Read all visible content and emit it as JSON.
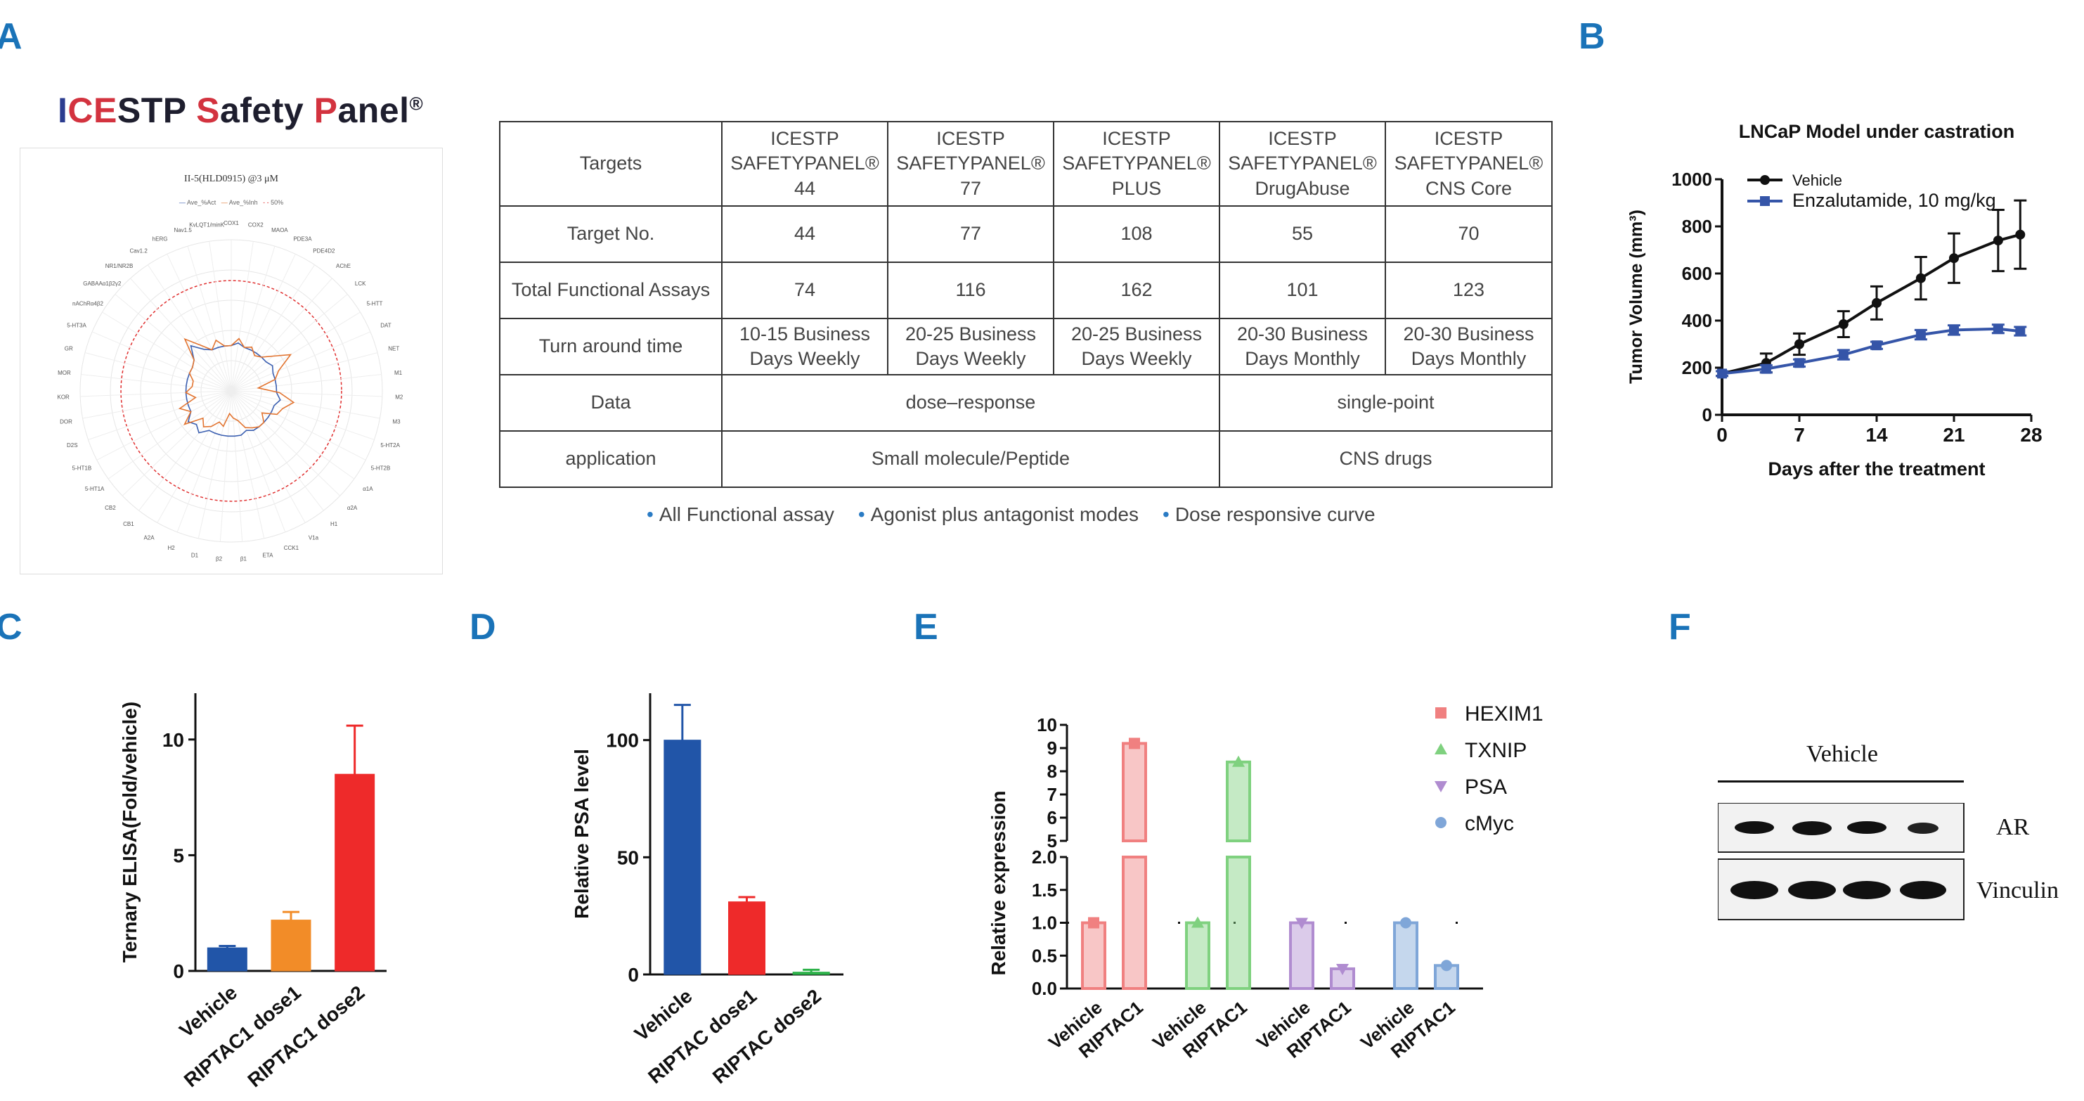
{
  "panel_labels": {
    "a": "A",
    "b": "B",
    "c": "C",
    "d": "D",
    "e": "E",
    "f": "F"
  },
  "panelA": {
    "title_parts": [
      "I",
      "CE",
      "STP ",
      "S",
      "afety ",
      "P",
      "anel",
      "®"
    ],
    "radar": {
      "title": "II-5(HLD0915) @3 μM",
      "legend": [
        "Ave_%Act",
        "Ave_%Inh",
        "50%"
      ],
      "axes": [
        "COX1",
        "COX2",
        "MAOA",
        "PDE3A",
        "PDE4D2",
        "AChE",
        "LCK",
        "5-HTT",
        "DAT",
        "NET",
        "M1",
        "M2",
        "M3",
        "5-HT2A",
        "5-HT2B",
        "α1A",
        "α2A",
        "H1",
        "V1a",
        "CCK1",
        "ETA",
        "β1",
        "β2",
        "D1",
        "H2",
        "A2A",
        "CB1",
        "CB2",
        "5-HT1A",
        "5-HT1B",
        "D2S",
        "DOR",
        "KOR",
        "MOR",
        "GR",
        "5-HT3A",
        "nAChRα4β2",
        "GABAAα1β2γ2",
        "NR1/NR2B",
        "Cav1.2",
        "hERG",
        "Nav1.5",
        "KvLQT1/minK"
      ],
      "colors": {
        "act": "#3b5fb0",
        "inh": "#e27430",
        "ref": "#e03030"
      }
    },
    "table": {
      "header": [
        "Targets",
        "ICESTP SAFETYPANEL® 44",
        "ICESTP SAFETYPANEL® 77",
        "ICESTP SAFETYPANEL® PLUS",
        "ICESTP SAFETYPANEL® DrugAbuse",
        "ICESTP SAFETYPANEL® CNS Core"
      ],
      "header_lines": [
        [
          "Targets"
        ],
        [
          "ICESTP",
          "SAFETYPANEL®",
          "44"
        ],
        [
          "ICESTP",
          "SAFETYPANEL®",
          "77"
        ],
        [
          "ICESTP",
          "SAFETYPANEL®",
          "PLUS"
        ],
        [
          "ICESTP",
          "SAFETYPANEL®",
          "DrugAbuse"
        ],
        [
          "ICESTP",
          "SAFETYPANEL®",
          "CNS Core"
        ]
      ],
      "target_no": [
        "Target  No.",
        "44",
        "77",
        "108",
        "55",
        "70"
      ],
      "total_assays": [
        "Total Functional Assays",
        "74",
        "116",
        "162",
        "101",
        "123"
      ],
      "turnaround": [
        "Turn around time",
        "10-15 Business Days Weekly",
        "20-25 Business Days Weekly",
        "20-25 Business Days Weekly",
        "20-30 Business Days  Monthly",
        "20-30 Business Days Monthly"
      ],
      "data_row": [
        "Data",
        "dose–response",
        "single-point"
      ],
      "application_row": [
        "application",
        "Small molecule/Peptide",
        "CNS drugs"
      ]
    },
    "bullets": [
      "All Functional assay",
      "Agonist plus antagonist modes",
      "Dose responsive curve"
    ]
  },
  "chart_data": [
    {
      "id": "B",
      "type": "line",
      "title": "LNCaP Model under castration",
      "xlabel": "Days after the treatment",
      "ylabel": "Tumor Volume (mm³)",
      "xlim": [
        0,
        28
      ],
      "ylim": [
        0,
        1000
      ],
      "xticks": [
        0,
        7,
        14,
        21,
        28
      ],
      "yticks": [
        0,
        200,
        400,
        600,
        800,
        1000
      ],
      "legend_position": "top-right",
      "series": [
        {
          "name": "Vehicle",
          "color": "#111111",
          "marker": "circle",
          "x": [
            0,
            4,
            7,
            11,
            14,
            18,
            21,
            25,
            27
          ],
          "y": [
            175,
            220,
            300,
            385,
            475,
            580,
            665,
            740,
            765
          ],
          "err": [
            10,
            40,
            45,
            55,
            70,
            90,
            105,
            130,
            145
          ]
        },
        {
          "name": "Enzalutamide, 10 mg/kg",
          "color": "#3555a8",
          "marker": "square",
          "x": [
            0,
            4,
            7,
            11,
            14,
            18,
            21,
            25,
            27
          ],
          "y": [
            175,
            195,
            220,
            255,
            295,
            340,
            360,
            365,
            355
          ],
          "err": [
            10,
            15,
            15,
            20,
            15,
            20,
            20,
            18,
            18
          ]
        }
      ]
    },
    {
      "id": "C",
      "type": "bar",
      "ylabel": "Ternary ELISA(Fold/vehicle)",
      "ylim": [
        0,
        12
      ],
      "yticks": [
        0,
        5,
        10
      ],
      "categories": [
        "Vehicle",
        "RIPTAC1 dose1",
        "RIPTAC1 dose2"
      ],
      "values": [
        1.0,
        2.2,
        8.5
      ],
      "errors": [
        0.08,
        0.35,
        2.1
      ],
      "colors": [
        "#2155a8",
        "#f28c28",
        "#ee2a2a"
      ]
    },
    {
      "id": "D",
      "type": "bar",
      "ylabel": "Relative PSA level",
      "ylim": [
        0,
        120
      ],
      "yticks": [
        0,
        50,
        100
      ],
      "categories": [
        "Vehicle",
        "RIPTAC dose1",
        "RIPTAC dose2"
      ],
      "values": [
        100,
        31,
        1
      ],
      "errors": [
        15,
        2,
        1
      ],
      "colors": [
        "#2155a8",
        "#ee2a2a",
        "#2db24a"
      ]
    },
    {
      "id": "E",
      "type": "bar",
      "ylabel": "Relative expression",
      "broken_axis": {
        "lower": [
          0,
          2.0
        ],
        "upper": [
          5,
          10
        ]
      },
      "yticks_lower": [
        "0.0",
        "0.5",
        "1.0",
        "1.5",
        "2.0"
      ],
      "yticks_upper": [
        "5",
        "6",
        "7",
        "8",
        "9",
        "10"
      ],
      "legend_position": "top-right",
      "series": [
        {
          "name": "HEXIM1",
          "color": "#f08080",
          "marker": "square",
          "categories": [
            "Vehicle",
            "RIPTAC1"
          ],
          "values": [
            1.0,
            9.2
          ]
        },
        {
          "name": "TXNIP",
          "color": "#7fd17f",
          "marker": "triangle-up",
          "categories": [
            "Vehicle",
            "RIPTAC1"
          ],
          "values": [
            1.0,
            8.4
          ]
        },
        {
          "name": "PSA",
          "color": "#b08cd0",
          "marker": "triangle-down",
          "categories": [
            "Vehicle",
            "RIPTAC1"
          ],
          "values": [
            1.0,
            0.3
          ]
        },
        {
          "name": "cMyc",
          "color": "#7fa6d8",
          "marker": "circle",
          "categories": [
            "Vehicle",
            "RIPTAC1"
          ],
          "values": [
            1.0,
            0.35
          ]
        }
      ],
      "reference_line": 1.0
    }
  ],
  "panelF": {
    "header": "Vehicle",
    "bands": [
      "AR",
      "Vinculin"
    ]
  }
}
